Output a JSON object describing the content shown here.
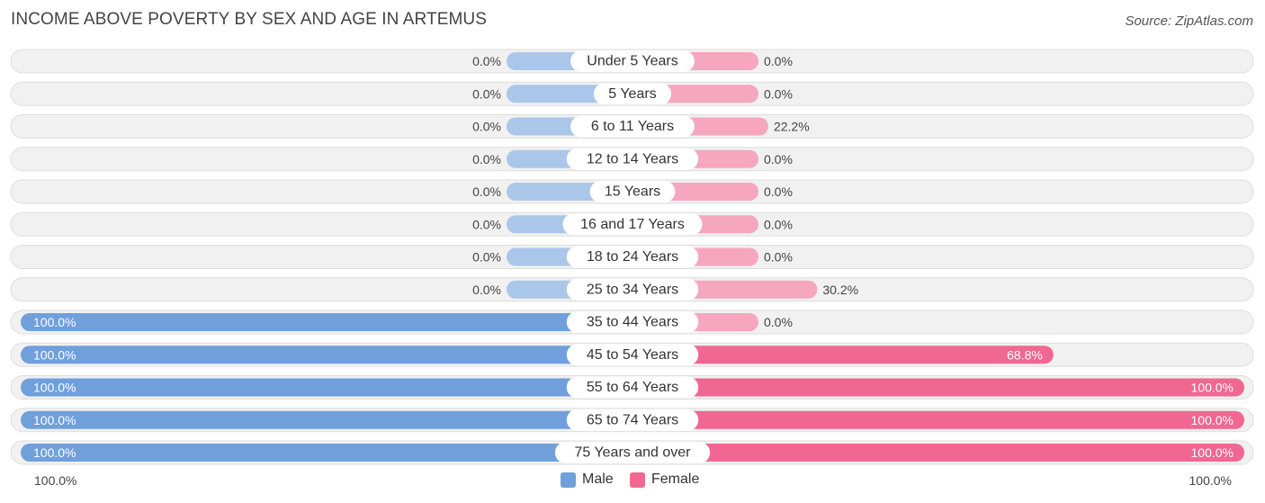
{
  "title": "INCOME ABOVE POVERTY BY SEX AND AGE IN ARTEMUS",
  "source": "Source: ZipAtlas.com",
  "colors": {
    "male": "#6fa0dc",
    "male_light": "#aac7ea",
    "female": "#f06792",
    "female_light": "#f6a6bf",
    "track": "#f1f1f1",
    "track_border": "#dddddd"
  },
  "legend": {
    "male_label": "Male",
    "female_label": "Female"
  },
  "axis": {
    "left_label": "100.0%",
    "right_label": "100.0%"
  },
  "chart_data": {
    "type": "bar",
    "orientation": "horizontal-diverging",
    "title": "INCOME ABOVE POVERTY BY SEX AND AGE IN ARTEMUS",
    "xlim": [
      -100,
      100
    ],
    "categories": [
      "Under 5 Years",
      "5 Years",
      "6 to 11 Years",
      "12 to 14 Years",
      "15 Years",
      "16 and 17 Years",
      "18 to 24 Years",
      "25 to 34 Years",
      "35 to 44 Years",
      "45 to 54 Years",
      "55 to 64 Years",
      "65 to 74 Years",
      "75 Years and over"
    ],
    "series": [
      {
        "name": "Male",
        "values": [
          0.0,
          0.0,
          0.0,
          0.0,
          0.0,
          0.0,
          0.0,
          0.0,
          100.0,
          100.0,
          100.0,
          100.0,
          100.0
        ],
        "labels": [
          "0.0%",
          "0.0%",
          "0.0%",
          "0.0%",
          "0.0%",
          "0.0%",
          "0.0%",
          "0.0%",
          "100.0%",
          "100.0%",
          "100.0%",
          "100.0%",
          "100.0%"
        ]
      },
      {
        "name": "Female",
        "values": [
          0.0,
          0.0,
          22.2,
          0.0,
          0.0,
          0.0,
          0.0,
          30.2,
          0.0,
          68.8,
          100.0,
          100.0,
          100.0
        ],
        "labels": [
          "0.0%",
          "0.0%",
          "22.2%",
          "0.0%",
          "0.0%",
          "0.0%",
          "0.0%",
          "30.2%",
          "0.0%",
          "68.8%",
          "100.0%",
          "100.0%",
          "100.0%"
        ]
      }
    ]
  }
}
